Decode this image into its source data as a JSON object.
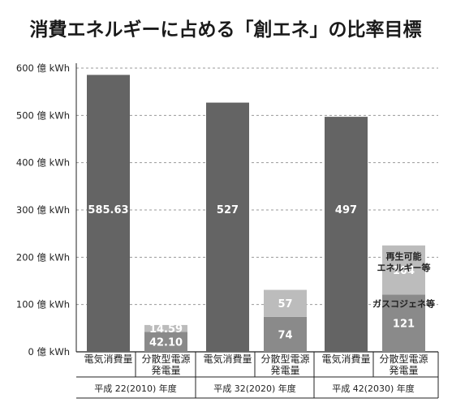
{
  "chart_data": {
    "type": "bar",
    "title": "消費エネルギーに占める「創エネ」の比率目標",
    "ylim": [
      0,
      600
    ],
    "yticks": [
      {
        "value": 0,
        "label": "0 億 kWh"
      },
      {
        "value": 100,
        "label": "100 億 kWh"
      },
      {
        "value": 200,
        "label": "200 億 kWh"
      },
      {
        "value": 300,
        "label": "300 億 kWh"
      },
      {
        "value": 400,
        "label": "400 億 kWh"
      },
      {
        "value": 500,
        "label": "500 億 kWh"
      },
      {
        "value": 600,
        "label": "600 億 kWh"
      }
    ],
    "grid": true,
    "groups": [
      {
        "label": "平成 22(2010) 年度",
        "consumption": {
          "category": [
            "電気消費量"
          ],
          "value": 585.63,
          "value_label": "585.63"
        },
        "generation": {
          "category": [
            "分散型電源",
            "発電量"
          ],
          "segments": [
            {
              "value": 42.1,
              "value_label": "42.10",
              "color": "#8a8a8a"
            },
            {
              "value": 14.59,
              "value_label": "14.59",
              "color": "#bcbcbc"
            }
          ]
        }
      },
      {
        "label": "平成 32(2020) 年度",
        "consumption": {
          "category": [
            "電気消費量"
          ],
          "value": 527,
          "value_label": "527"
        },
        "generation": {
          "category": [
            "分散型電源",
            "発電量"
          ],
          "segments": [
            {
              "value": 74,
              "value_label": "74",
              "color": "#8a8a8a"
            },
            {
              "value": 57,
              "value_label": "57",
              "color": "#bcbcbc"
            }
          ]
        }
      },
      {
        "label": "平成 42(2030) 年度",
        "consumption": {
          "category": [
            "電気消費量"
          ],
          "value": 497,
          "value_label": "497"
        },
        "generation": {
          "category": [
            "分散型電源",
            "発電量"
          ],
          "segments": [
            {
              "value": 121,
              "value_label": "121",
              "color": "#8a8a8a"
            },
            {
              "value": 104,
              "value_label": "104",
              "color": "#bcbcbc"
            }
          ]
        }
      }
    ],
    "annotations": {
      "renewable": [
        "再生可能",
        "エネルギー等"
      ],
      "cogeneration": [
        "ガスコジェネ等"
      ]
    },
    "colors": {
      "consumption": "#646464",
      "cogeneration": "#8a8a8a",
      "renewable": "#bcbcbc",
      "grid": "#9a9a9a",
      "axis": "#222222"
    }
  }
}
